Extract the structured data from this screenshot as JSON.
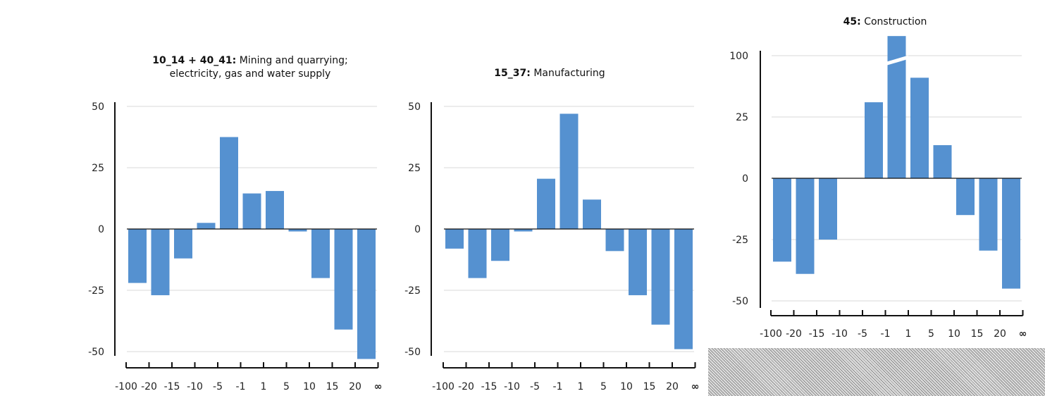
{
  "colors": {
    "bar": "#5591d0",
    "axis": "#111111",
    "grid": "#d9d9d9"
  },
  "x_tick_labels": [
    "-100",
    "-20",
    "-15",
    "-10",
    "-5",
    "-1",
    "1",
    "5",
    "10",
    "15",
    "20",
    "∞"
  ],
  "chart_data": [
    {
      "type": "bar",
      "title_code": "10_14 + 40_41:",
      "title_text": "Mining and quarrying;",
      "title_text2": "electricity, gas and water supply",
      "categories": [
        "-100 to -20",
        "-20 to -15",
        "-15 to -10",
        "-10 to -5",
        "-5 to -1",
        "-1 to 1",
        "1 to 5",
        "5 to 10",
        "10 to 15",
        "15 to 20",
        "20 to ∞"
      ],
      "values": [
        -22,
        -27,
        -12,
        2.5,
        37.5,
        14.5,
        15.5,
        -1,
        -20,
        -41,
        -53
      ],
      "yticks": [
        50,
        25,
        0,
        -25,
        -50
      ],
      "ylim": [
        -53,
        50
      ],
      "grid": true
    },
    {
      "type": "bar",
      "title_code": "15_37:",
      "title_text": "Manufacturing",
      "title_text2": "",
      "categories": [
        "-100 to -20",
        "-20 to -15",
        "-15 to -10",
        "-10 to -5",
        "-5 to -1",
        "-1 to 1",
        "1 to 5",
        "5 to 10",
        "10 to 15",
        "15 to 20",
        "20 to ∞"
      ],
      "values": [
        -8,
        -20,
        -13,
        -1,
        20.5,
        47,
        12,
        -9,
        -27,
        -39,
        -49
      ],
      "yticks": [
        50,
        25,
        0,
        -25,
        -50
      ],
      "ylim": [
        -53,
        50
      ],
      "grid": true
    },
    {
      "type": "bar",
      "title_code": "45:",
      "title_text": "Construction",
      "title_text2": "",
      "categories": [
        "-100 to -20",
        "-20 to -15",
        "-15 to -10",
        "-10 to -5",
        "-5 to -1",
        "-1 to 1",
        "1 to 5",
        "5 to 10",
        "10 to 15",
        "15 to 20",
        "20 to ∞"
      ],
      "values": [
        -34,
        -39,
        -25,
        0,
        31,
        100,
        41,
        13.5,
        -15,
        -29.5,
        -45
      ],
      "yticks": [
        "100",
        "25",
        "0",
        "-25",
        "-50"
      ],
      "ylim": [
        -50,
        50
      ],
      "axis_break": true,
      "grid": true
    }
  ]
}
